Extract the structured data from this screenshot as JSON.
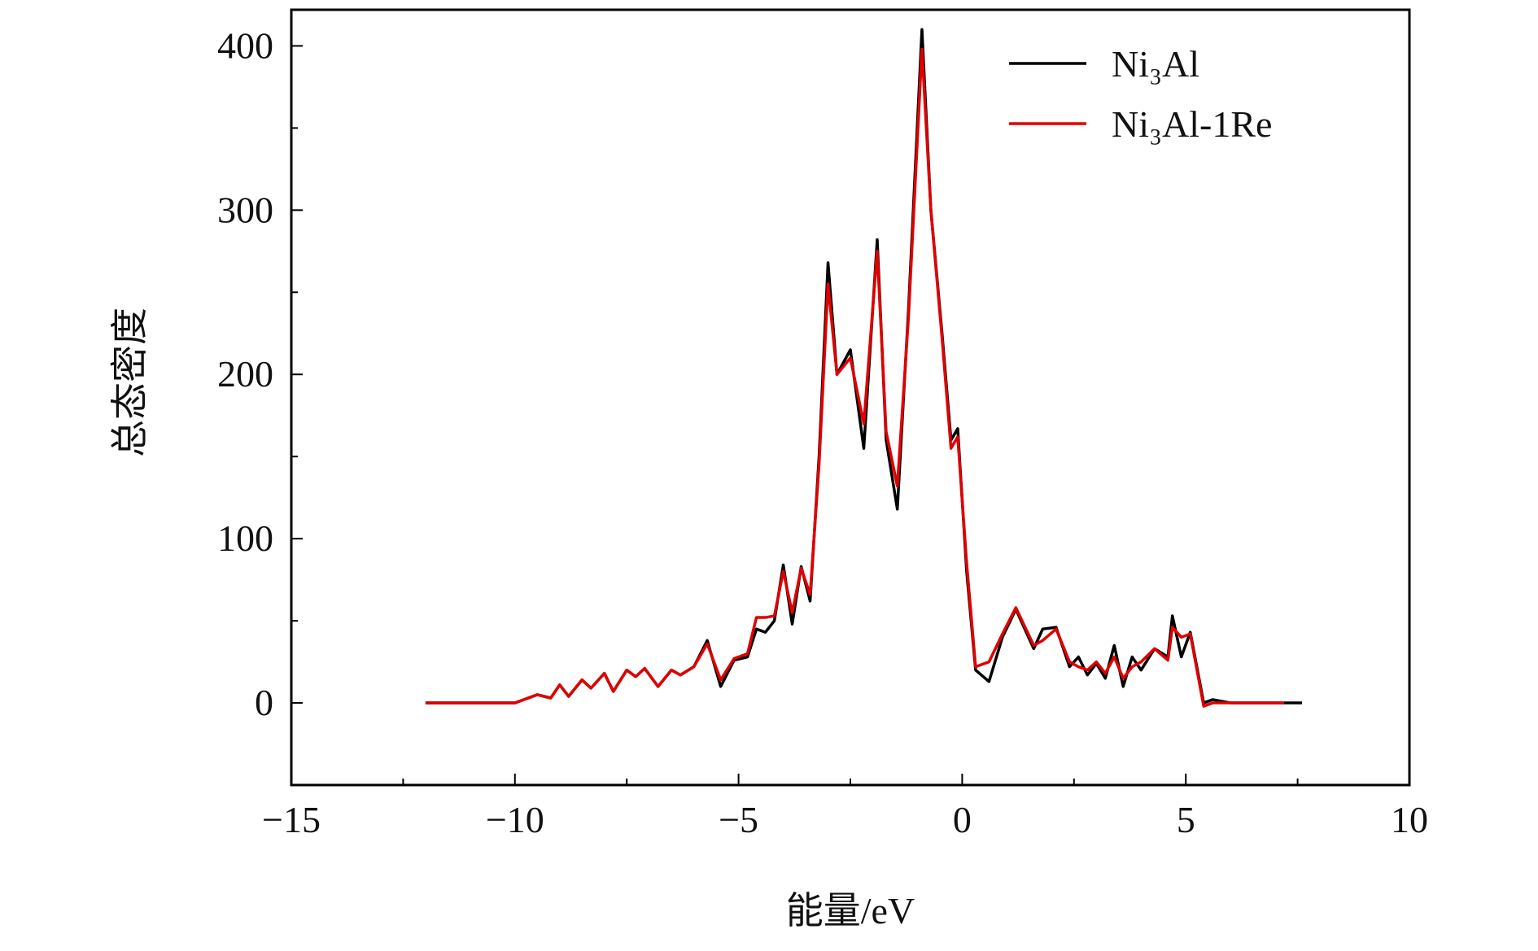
{
  "chart_data": {
    "type": "line",
    "xlabel": "能量/eV",
    "ylabel": "总态密度",
    "x": [
      -12,
      -10,
      -9.8,
      -9.5,
      -9.2,
      -9.0,
      -8.8,
      -8.5,
      -8.3,
      -8.0,
      -7.8,
      -7.5,
      -7.3,
      -7.1,
      -6.8,
      -6.5,
      -6.3,
      -6.0,
      -5.7,
      -5.4,
      -5.1,
      -4.8,
      -4.6,
      -4.4,
      -4.2,
      -4.0,
      -3.8,
      -3.6,
      -3.4,
      -3.2,
      -3.0,
      -2.8,
      -2.5,
      -2.2,
      -1.9,
      -1.7,
      -1.45,
      -1.2,
      -0.9,
      -0.7,
      -0.45,
      -0.25,
      -0.1,
      0.1,
      0.3,
      0.6,
      0.9,
      1.2,
      1.6,
      1.8,
      2.1,
      2.4,
      2.6,
      2.8,
      3.0,
      3.2,
      3.4,
      3.6,
      3.8,
      4.0,
      4.3,
      4.6,
      4.7,
      4.9,
      5.1,
      5.4,
      5.6,
      6,
      7.2,
      7.6
    ],
    "series": [
      {
        "name": "Ni₃Al",
        "color": "#000000",
        "values": [
          0,
          0,
          2,
          5,
          3,
          11,
          4,
          14,
          9,
          18,
          7,
          20,
          16,
          21,
          10,
          20,
          17,
          22,
          38,
          10,
          26,
          28,
          45,
          43,
          50,
          84,
          48,
          83,
          62,
          150,
          268,
          200,
          215,
          155,
          282,
          160,
          118,
          240,
          410,
          300,
          225,
          160,
          167,
          80,
          20,
          13,
          40,
          57,
          33,
          45,
          46,
          22,
          28,
          17,
          24,
          15,
          35,
          10,
          28,
          20,
          33,
          28,
          53,
          28,
          43,
          0,
          2,
          0,
          0,
          0
        ]
      },
      {
        "name": "Ni₃Al-1Re",
        "color": "#e00000",
        "values": [
          0,
          0,
          2,
          5,
          3,
          11,
          4,
          14,
          9,
          18,
          7,
          20,
          16,
          21,
          10,
          20,
          17,
          22,
          36,
          14,
          27,
          30,
          52,
          52,
          53,
          80,
          55,
          82,
          66,
          145,
          255,
          200,
          210,
          170,
          275,
          165,
          132,
          235,
          398,
          300,
          222,
          155,
          162,
          85,
          22,
          25,
          42,
          58,
          35,
          38,
          45,
          25,
          22,
          20,
          25,
          18,
          28,
          15,
          22,
          25,
          33,
          26,
          46,
          40,
          42,
          -2,
          0,
          0,
          0,
          null
        ]
      }
    ],
    "xlim": [
      -15,
      10
    ],
    "xticks": [
      {
        "value": -15,
        "label": "−15"
      },
      {
        "value": -10,
        "label": "−10"
      },
      {
        "value": -5,
        "label": "−5"
      },
      0,
      5,
      10
    ],
    "xminorticks": [
      -12.5,
      -7.5,
      -2.5,
      2.5,
      7.5
    ],
    "ylim": [
      -50,
      422
    ],
    "yticks": [
      0,
      100,
      200,
      300,
      400
    ],
    "yminorticks": [
      50,
      150,
      250,
      350
    ],
    "grid": false,
    "legend": "upper right"
  }
}
